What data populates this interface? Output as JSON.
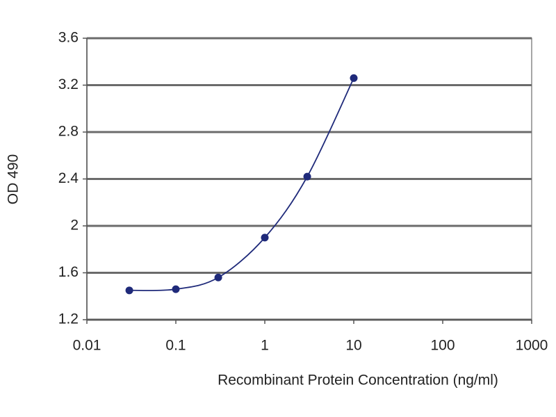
{
  "chart_data": {
    "type": "line",
    "x_label": "Recombinant Protein Concentration (ng/ml)",
    "y_label": "OD 490",
    "x": [
      0.03,
      0.1,
      0.3,
      1,
      3,
      10
    ],
    "series": [
      {
        "name": "OD 490",
        "color": "#1f2a7a",
        "values": [
          1.45,
          1.46,
          1.56,
          1.9,
          2.42,
          3.26
        ]
      }
    ],
    "xlim": [
      0.01,
      1000
    ],
    "xticks": [
      0.01,
      0.1,
      1,
      10,
      100,
      1000
    ],
    "log_x": true,
    "ylim": [
      1.2,
      3.6
    ],
    "yticks": [
      1.2,
      1.6,
      2,
      2.4,
      2.8,
      3.2,
      3.6
    ],
    "grid": true
  }
}
